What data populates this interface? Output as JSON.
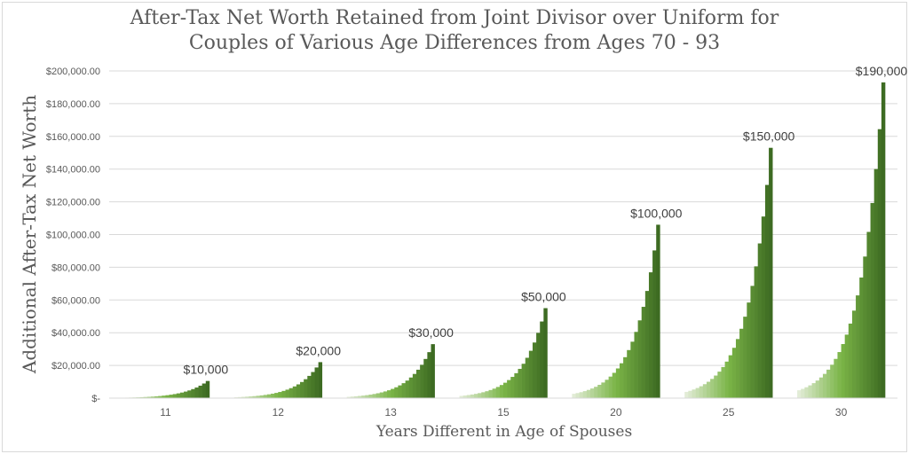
{
  "chart_data": {
    "type": "bar",
    "title": "After-Tax Net Worth Retained from Joint Divisor over Uniform for",
    "title_line2": "Couples of Various Age Differences from Ages 70 - 93",
    "xlabel": "Years Different in Age of Spouses",
    "ylabel": "Additional After-Tax Net Worth",
    "ylim": [
      0,
      200000
    ],
    "yticks": [
      "$-",
      "$20,000.00",
      "$40,000.00",
      "$60,000.00",
      "$80,000.00",
      "$100,000.00",
      "$120,000.00",
      "$140,000.00",
      "$160,000.00",
      "$180,000.00",
      "$200,000.00"
    ],
    "grid": true,
    "categories": [
      "11",
      "12",
      "13",
      "15",
      "20",
      "25",
      "30"
    ],
    "bars_per_group": 24,
    "group_final_values": [
      10500,
      22000,
      33000,
      55000,
      106000,
      153000,
      193000
    ],
    "data_labels": [
      "$10,000",
      "$20,000",
      "$30,000",
      "$50,000",
      "$100,000",
      "$150,000",
      "$190,000"
    ],
    "colors": {
      "light": "#e2ecd6",
      "mid": "#7bb547",
      "dark": "#3d6b22",
      "grid": "#d9d9d9"
    }
  }
}
